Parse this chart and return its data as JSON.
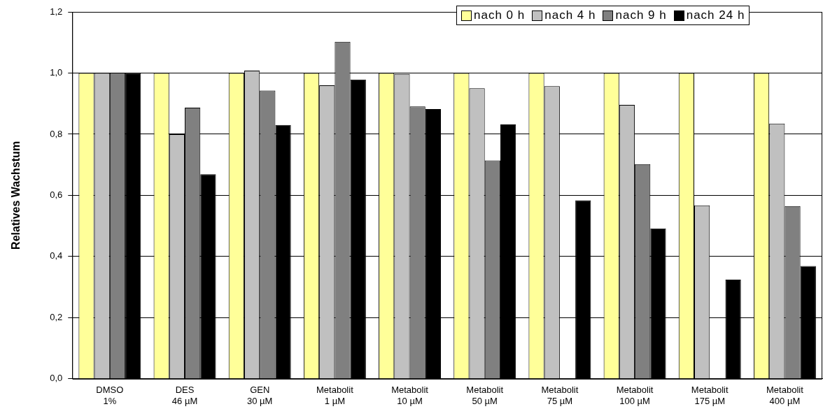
{
  "chart_data": {
    "type": "bar",
    "ylabel": "Relatives Wachstum",
    "categories": [
      "DMSO\n1%",
      "DES\n46 µM",
      "GEN\n30 µM",
      "Metabolit\n1 µM",
      "Metabolit\n10 µM",
      "Metabolit\n50 µM",
      "Metabolit\n75 µM",
      "Metabolit\n100 µM",
      "Metabolit\n175 µM",
      "Metabolit\n400 µM"
    ],
    "series": [
      {
        "name": "nach 0 h",
        "color": "#ffff99",
        "values": [
          1,
          1,
          1,
          1,
          1,
          1,
          1,
          1,
          1,
          1
        ]
      },
      {
        "name": "nach 4 h",
        "color": "#c0c0c0",
        "values": [
          1,
          0.8,
          1.008,
          0.96,
          0.997,
          0.95,
          0.957,
          0.896,
          0.567,
          0.835
        ]
      },
      {
        "name": "nach 9 h",
        "color": "#808080",
        "values": [
          1,
          0.887,
          0.943,
          1.102,
          0.891,
          0.714,
          null,
          0.702,
          null,
          0.565
        ]
      },
      {
        "name": "nach 24 h",
        "color": "#000000",
        "values": [
          1,
          0.669,
          0.83,
          0.979,
          0.882,
          0.832,
          0.584,
          0.492,
          0.324,
          0.369
        ]
      }
    ],
    "ylim": [
      0,
      1.2
    ],
    "yticks": [
      {
        "value": 0,
        "label": "0,0"
      },
      {
        "value": 0.2,
        "label": "0,2"
      },
      {
        "value": 0.4,
        "label": "0,4"
      },
      {
        "value": 0.6,
        "label": "0,6"
      },
      {
        "value": 0.8,
        "label": "0,8"
      },
      {
        "value": 1,
        "label": "1,0"
      },
      {
        "value": 1.2,
        "label": "1,2"
      }
    ],
    "grid": "y",
    "legend": "top right"
  }
}
